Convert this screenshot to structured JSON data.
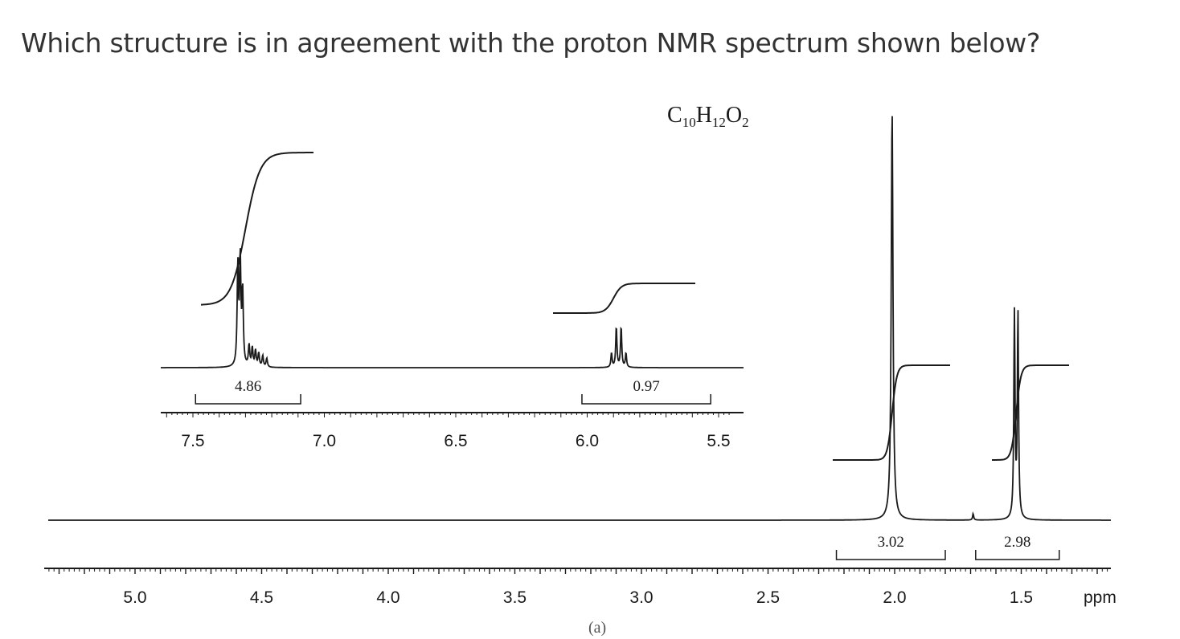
{
  "question": "Which structure is in agreement  with the proton NMR spectrum shown below?",
  "colors": {
    "text": "#333333",
    "trace": "#1a1a1a"
  },
  "chart_data": {
    "type": "line",
    "formula": "C10H12O2",
    "formula_parts": [
      "C",
      "10",
      "H",
      "12",
      "O",
      "2"
    ],
    "unit": "ppm",
    "main_axis": {
      "ticks": [
        5.0,
        4.5,
        4.0,
        3.5,
        3.0,
        2.5,
        2.0,
        1.5
      ],
      "tick_labels": [
        "5.0",
        "4.5",
        "4.0",
        "3.5",
        "3.0",
        "2.5",
        "2.0",
        "1.5"
      ],
      "xlim": [
        5.35,
        1.15
      ],
      "reversed": true,
      "xlabel": "ppm"
    },
    "inset_axis": {
      "ticks": [
        7.5,
        7.0,
        6.5,
        6.0,
        5.5
      ],
      "tick_labels": [
        "7.5",
        "7.0",
        "6.5",
        "6.0",
        "5.5"
      ],
      "xlim": [
        7.6,
        5.45
      ],
      "reversed": true
    },
    "integrations": [
      {
        "label": "4.86",
        "from": 7.49,
        "to": 7.09,
        "axis": "inset"
      },
      {
        "label": "0.97",
        "from": 6.02,
        "to": 5.53,
        "axis": "inset"
      },
      {
        "label": "3.02",
        "from": 2.23,
        "to": 1.8,
        "axis": "main"
      },
      {
        "label": "2.98",
        "from": 1.68,
        "to": 1.35,
        "axis": "main"
      }
    ],
    "peaks": [
      {
        "shift": 7.32,
        "multiplicity": "multiplet",
        "relative_height": 0.72,
        "axis": "inset"
      },
      {
        "shift": 5.88,
        "multiplicity": "quartet",
        "relative_height": 0.28,
        "axis": "inset"
      },
      {
        "shift": 2.01,
        "multiplicity": "singlet",
        "relative_height": 1.0,
        "axis": "main"
      },
      {
        "shift": 1.52,
        "multiplicity": "doublet",
        "relative_height": 0.5,
        "axis": "main"
      }
    ],
    "footer_fragment": "(a)"
  }
}
